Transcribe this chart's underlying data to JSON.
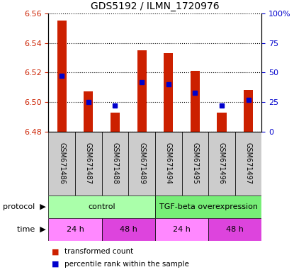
{
  "title": "GDS5192 / ILMN_1720976",
  "samples": [
    "GSM671486",
    "GSM671487",
    "GSM671488",
    "GSM671489",
    "GSM671494",
    "GSM671495",
    "GSM671496",
    "GSM671497"
  ],
  "bar_values": [
    6.555,
    6.507,
    6.493,
    6.535,
    6.533,
    6.521,
    6.493,
    6.508
  ],
  "percentile_ranks": [
    47,
    25,
    22,
    42,
    40,
    33,
    22,
    27
  ],
  "y_min": 6.48,
  "y_max": 6.56,
  "y_ticks": [
    6.48,
    6.5,
    6.52,
    6.54,
    6.56
  ],
  "right_y_ticks": [
    0,
    25,
    50,
    75,
    100
  ],
  "right_y_labels": [
    "0",
    "25",
    "50",
    "75",
    "100%"
  ],
  "bar_color": "#cc2000",
  "percentile_color": "#0000cc",
  "bar_width": 0.35,
  "protocol_groups": [
    {
      "label": "control",
      "start": 0,
      "end": 4,
      "color": "#aaffaa"
    },
    {
      "label": "TGF-beta overexpression",
      "start": 4,
      "end": 8,
      "color": "#77ee77"
    }
  ],
  "time_groups": [
    {
      "label": "24 h",
      "start": 0,
      "end": 2,
      "color": "#ff88ff"
    },
    {
      "label": "48 h",
      "start": 2,
      "end": 4,
      "color": "#dd44dd"
    },
    {
      "label": "24 h",
      "start": 4,
      "end": 6,
      "color": "#ff88ff"
    },
    {
      "label": "48 h",
      "start": 6,
      "end": 8,
      "color": "#dd44dd"
    }
  ],
  "tick_bg_color": "#cccccc",
  "left_label_color": "#cc2000",
  "right_label_color": "#0000cc",
  "grid_color": "#888888"
}
